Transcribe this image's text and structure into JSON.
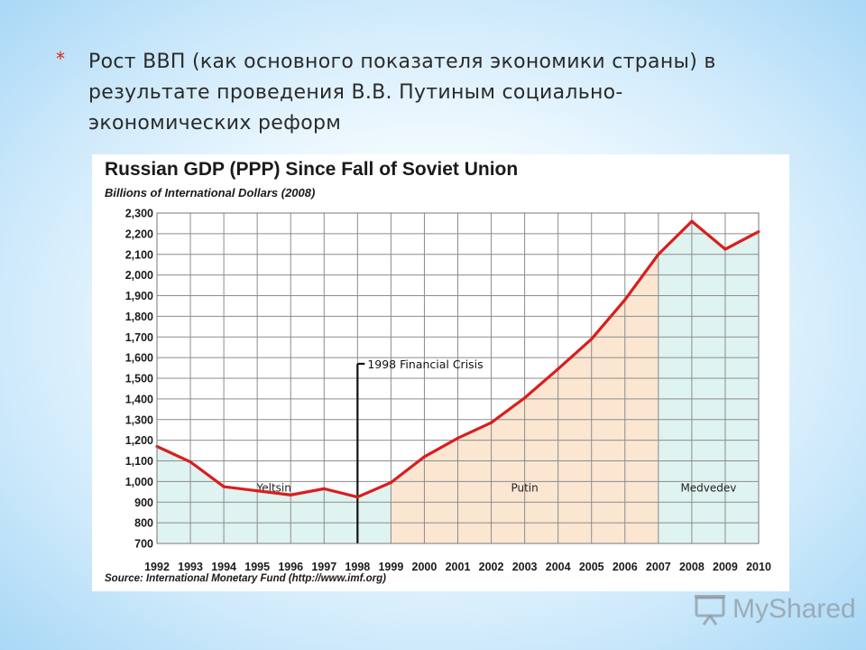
{
  "slide": {
    "bullet": "*",
    "title": "Рост ВВП (как основного показателя экономики страны) в результате проведения В.В. Путиным социально-экономических реформ",
    "title_lines": [
      "Рост ВВП (как основного показателя экономики страны) в",
      "результате проведения В.В. Путиным социально-",
      "экономических реформ"
    ]
  },
  "watermark": {
    "text": "MyShared",
    "icon": "projector-screen-icon"
  },
  "chart_data": {
    "type": "line",
    "title": "Russian GDP (PPP) Since Fall of Soviet Union",
    "subtitle": "Billions of International Dollars (2008)",
    "source": "Source: International Monetary Fund (http://www.imf.org)",
    "xlabel": "",
    "ylabel": "",
    "x": [
      "1992",
      "1993",
      "1994",
      "1995",
      "1996",
      "1997",
      "1998",
      "1999",
      "2000",
      "2001",
      "2002",
      "2003",
      "2004",
      "2005",
      "2006",
      "2007",
      "2008",
      "2009",
      "2010"
    ],
    "y_ticks": [
      "700",
      "800",
      "900",
      "1,000",
      "1,100",
      "1,200",
      "1,300",
      "1,400",
      "1,500",
      "1,600",
      "1,700",
      "1,800",
      "1,900",
      "2,000",
      "2,100",
      "2,200",
      "2,300"
    ],
    "ylim": [
      700,
      2300
    ],
    "grid": true,
    "series": [
      {
        "name": "",
        "color": "#d81e1e",
        "values": [
          1170,
          1095,
          975,
          955,
          935,
          965,
          925,
          995,
          1120,
          1210,
          1285,
          1405,
          1545,
          1690,
          1880,
          2100,
          2260,
          2125,
          2210
        ]
      }
    ],
    "periods": [
      {
        "label": "Yeltsin",
        "from": "1992",
        "to": "1999",
        "color": "#dff3f0"
      },
      {
        "label": "Putin",
        "from": "1999",
        "to": "2007",
        "color": "#fbe6d2"
      },
      {
        "label": "Medvedev",
        "from": "2007",
        "to": "2010",
        "color": "#dff3f0"
      }
    ],
    "annotations": [
      {
        "text": "1998 Financial Crisis",
        "x": "1998"
      }
    ],
    "legend": "none"
  }
}
